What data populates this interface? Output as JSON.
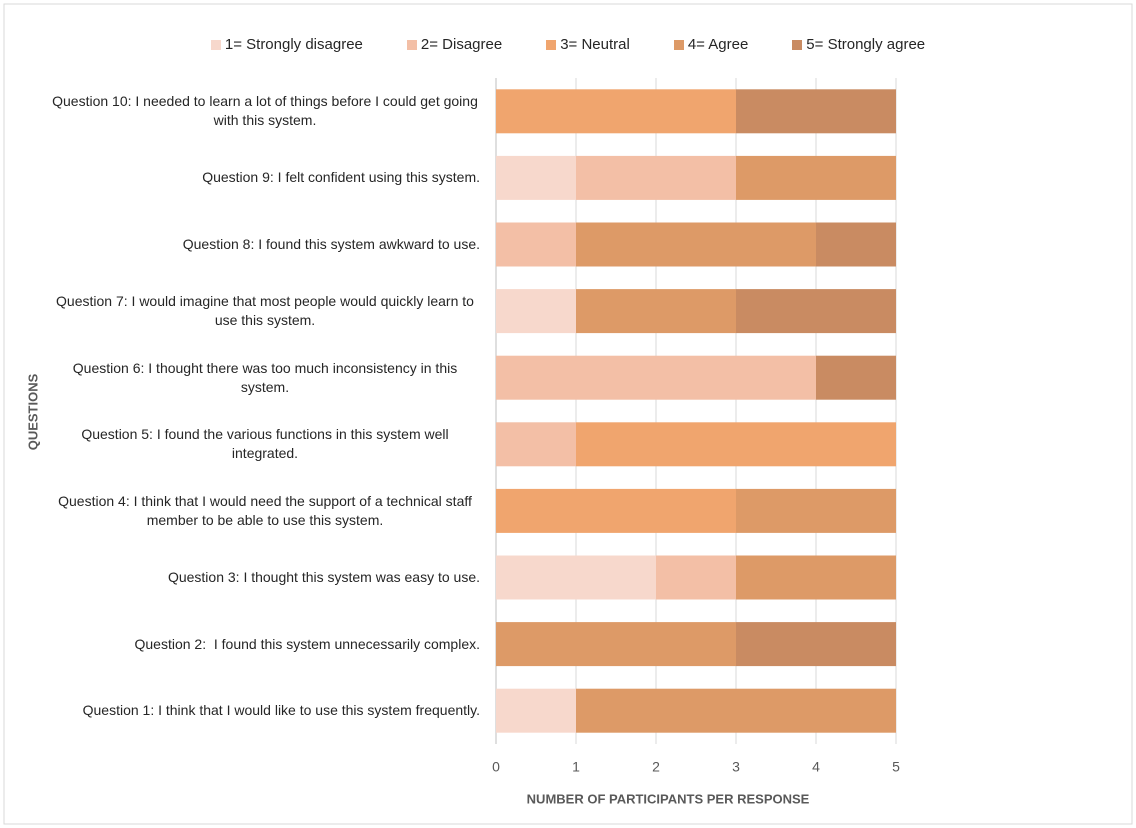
{
  "chart_data": {
    "type": "stacked_bar_horizontal",
    "xlabel": "NUMBER OF PARTICIPANTS PER RESPONSE",
    "ylabel": "QUESTIONS",
    "categories": [
      "Question 1: I think that I would like to use this system frequently.",
      "Question 2:  I found this system unnecessarily complex.",
      "Question 3: I thought this system was easy to use.",
      "Question 4: I think that I would need the support of a technical staff member to be able to use this system.",
      "Question 5: I found the various functions in this system well integrated.",
      "Question 6: I thought there was too much inconsistency in this system.",
      "Question 7: I would imagine that most people would quickly learn to use this system.",
      "Question 8: I found this system awkward to use.",
      "Question 9: I felt confident using this system.",
      "Question 10: I needed to learn a lot of things before I could get going with this system."
    ],
    "series": [
      {
        "name": "1= Strongly disagree",
        "color": "#f7d8cc",
        "values": [
          1,
          0,
          2,
          0,
          0,
          0,
          1,
          0,
          1,
          0
        ]
      },
      {
        "name": "2= Disagree",
        "color": "#f3bfa6",
        "values": [
          0,
          0,
          1,
          0,
          1,
          4,
          0,
          1,
          2,
          0
        ]
      },
      {
        "name": "3= Neutral",
        "color": "#f0a56e",
        "values": [
          0,
          0,
          0,
          3,
          4,
          0,
          0,
          0,
          0,
          3
        ]
      },
      {
        "name": "4= Agree",
        "color": "#dd9a67",
        "values": [
          4,
          3,
          2,
          2,
          0,
          0,
          2,
          3,
          2,
          0
        ]
      },
      {
        "name": "5= Strongly agree",
        "color": "#c98b62",
        "values": [
          0,
          2,
          0,
          0,
          0,
          1,
          2,
          1,
          0,
          2
        ]
      }
    ],
    "xlim": [
      0,
      5
    ],
    "xticks": [
      0,
      1,
      2,
      3,
      4,
      5
    ],
    "grid": true,
    "legend": "top"
  }
}
